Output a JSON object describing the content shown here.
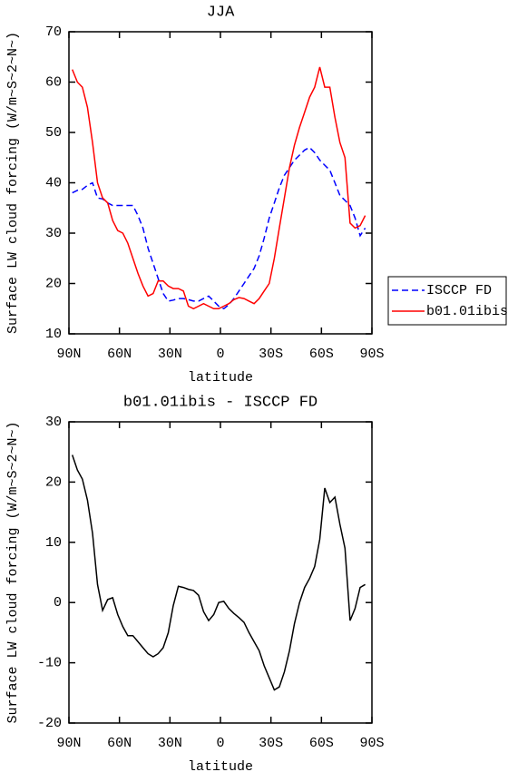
{
  "chart_data": [
    {
      "type": "line",
      "title": "JJA",
      "xlabel": "latitude",
      "ylabel": "Surface LW cloud forcing (W/m~S~2~N~)",
      "x": [
        88,
        85,
        82,
        79,
        76,
        73,
        70,
        67,
        64,
        61,
        58,
        55,
        52,
        49,
        46,
        43,
        40,
        37,
        34,
        31,
        28,
        25,
        22,
        19,
        16,
        13,
        10,
        7,
        4,
        1,
        -2,
        -5,
        -8,
        -11,
        -14,
        -17,
        -20,
        -23,
        -26,
        -29,
        -32,
        -35,
        -38,
        -41,
        -44,
        -47,
        -50,
        -53,
        -56,
        -59,
        -62,
        -65,
        -68,
        -71,
        -74,
        -77,
        -80,
        -83,
        -86
      ],
      "xlim": [
        90,
        -90
      ],
      "xticks": [
        {
          "value": 90,
          "label": "90N"
        },
        {
          "value": 60,
          "label": "60N"
        },
        {
          "value": 30,
          "label": "30N"
        },
        0,
        {
          "value": -30,
          "label": "30S"
        },
        {
          "value": -60,
          "label": "60S"
        },
        {
          "value": -90,
          "label": "90S"
        }
      ],
      "ylim": [
        10,
        70
      ],
      "yticks": [
        10,
        20,
        30,
        40,
        50,
        60,
        70
      ],
      "legend": "right",
      "series": [
        {
          "name": "ISCCP FD",
          "color": "#0000ff",
          "linestyle": "dashed",
          "values": [
            38,
            38.5,
            38.7,
            39.5,
            40,
            37,
            36.8,
            36,
            35.5,
            35.5,
            35.5,
            35.5,
            35.5,
            33.5,
            31,
            27,
            24,
            21,
            18,
            16.5,
            16.7,
            17,
            17,
            16.8,
            16.5,
            16.5,
            17,
            17.5,
            16.5,
            15.5,
            15,
            15.8,
            17,
            18.5,
            20,
            21.5,
            23,
            25.5,
            29,
            33,
            36,
            39,
            41.5,
            43,
            44.5,
            45.5,
            46.5,
            47,
            46,
            44.5,
            43.5,
            42.5,
            40,
            37.5,
            36.5,
            35.5,
            33,
            29.5,
            31
          ]
        },
        {
          "name": "b01.01ibis",
          "color": "#ff0000",
          "linestyle": "solid",
          "values": [
            62.5,
            60,
            59,
            55,
            48,
            40,
            37,
            36,
            32.5,
            30.5,
            30,
            28,
            25,
            22,
            19.5,
            17.5,
            18,
            20.5,
            20.5,
            19.5,
            19,
            19,
            18.5,
            15.5,
            15,
            15.5,
            16,
            15.5,
            15,
            15,
            15.5,
            16,
            16.8,
            17.2,
            17,
            16.5,
            16,
            17,
            18.5,
            20,
            25,
            31,
            37,
            43,
            47.5,
            51,
            54,
            57,
            59,
            63,
            59,
            59,
            53,
            48,
            45,
            32,
            31,
            31.5,
            33.5
          ]
        }
      ]
    },
    {
      "type": "line",
      "title": "b01.01ibis - ISCCP FD",
      "xlabel": "latitude",
      "ylabel": "Surface LW cloud forcing (W/m~S~2~N~)",
      "x": [
        88,
        85,
        82,
        79,
        76,
        73,
        70,
        67,
        64,
        61,
        58,
        55,
        52,
        49,
        46,
        43,
        40,
        37,
        34,
        31,
        28,
        25,
        22,
        19,
        16,
        13,
        10,
        7,
        4,
        1,
        -2,
        -5,
        -8,
        -11,
        -14,
        -17,
        -20,
        -23,
        -26,
        -29,
        -32,
        -35,
        -38,
        -41,
        -44,
        -47,
        -50,
        -53,
        -56,
        -59,
        -62,
        -65,
        -68,
        -71,
        -74,
        -77,
        -80,
        -83,
        -86
      ],
      "xlim": [
        90,
        -90
      ],
      "xticks": [
        {
          "value": 90,
          "label": "90N"
        },
        {
          "value": 60,
          "label": "60N"
        },
        {
          "value": 30,
          "label": "30N"
        },
        0,
        {
          "value": -30,
          "label": "30S"
        },
        {
          "value": -60,
          "label": "60S"
        },
        {
          "value": -90,
          "label": "90S"
        }
      ],
      "ylim": [
        -20,
        30
      ],
      "yticks": [
        -20,
        -10,
        0,
        10,
        20,
        30
      ],
      "color": "#000000",
      "values": [
        24.5,
        22,
        20.5,
        17,
        11.5,
        3,
        -1.3,
        0.5,
        0.8,
        -2,
        -4,
        -5.5,
        -5.5,
        -6.5,
        -7.5,
        -8.5,
        -9,
        -8.5,
        -7.5,
        -5,
        -0.5,
        2.7,
        2.5,
        2.2,
        2,
        1.2,
        -1.5,
        -3,
        -2,
        0,
        0.2,
        -1,
        -1.8,
        -2.5,
        -3.3,
        -5,
        -6.5,
        -8,
        -10.5,
        -12.5,
        -14.5,
        -14,
        -11.5,
        -8,
        -3.5,
        0,
        2.5,
        4,
        6,
        10.5,
        19,
        16.6,
        17.5,
        13,
        9,
        -3,
        -1,
        2.5,
        3
      ]
    }
  ]
}
